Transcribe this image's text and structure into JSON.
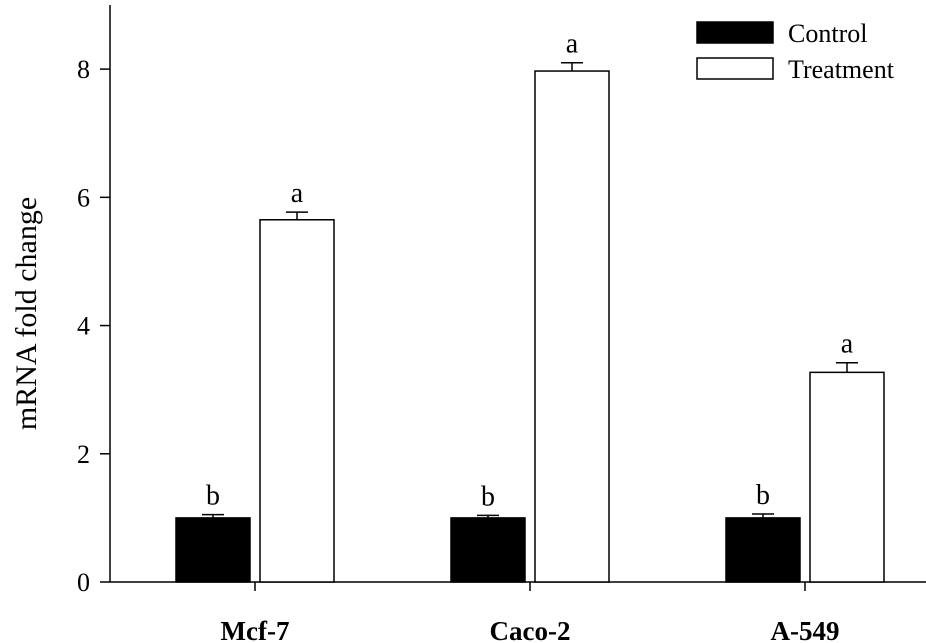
{
  "chart_data": {
    "type": "bar",
    "title": "",
    "xlabel": "",
    "ylabel": "mRNA fold change",
    "categories": [
      "Mcf-7",
      "Caco-2",
      "A-549"
    ],
    "ylim": [
      0,
      9
    ],
    "yticks": [
      0,
      2,
      4,
      6,
      8
    ],
    "grid": false,
    "legend_position": "top-right",
    "series": [
      {
        "name": "Control",
        "color": "#000000",
        "values": [
          1.0,
          1.0,
          1.0
        ],
        "errors": [
          0.05,
          0.04,
          0.06
        ],
        "labels": [
          "b",
          "b",
          "b"
        ]
      },
      {
        "name": "Treatment",
        "color": "#ffffff",
        "values": [
          5.65,
          7.97,
          3.27
        ],
        "errors": [
          0.12,
          0.13,
          0.15
        ],
        "labels": [
          "a",
          "a",
          "a"
        ]
      }
    ]
  }
}
